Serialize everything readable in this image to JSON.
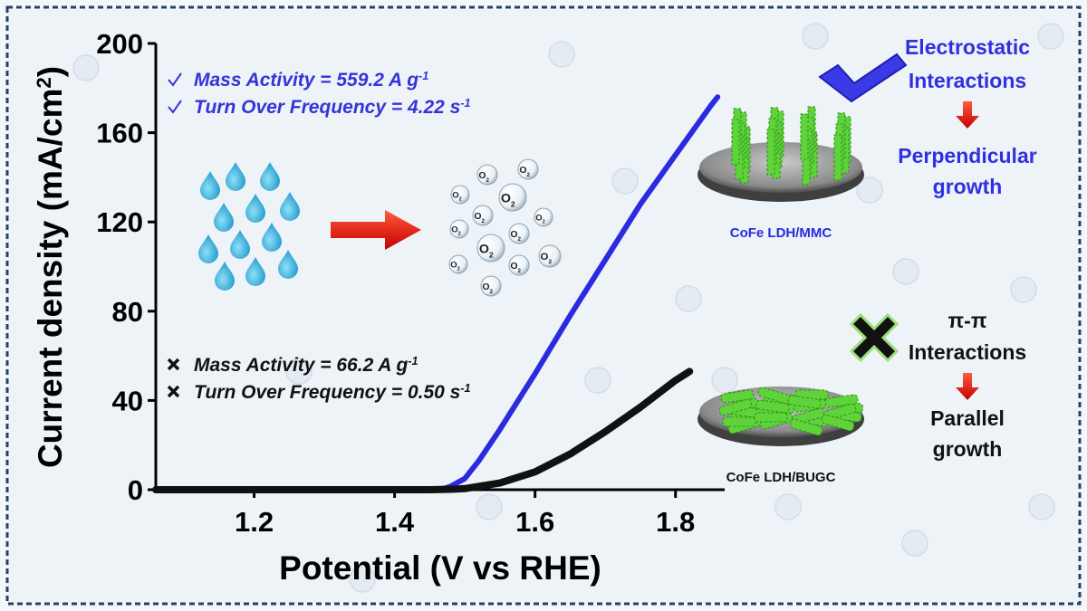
{
  "chart_data": {
    "type": "line",
    "xlabel": "Potential (V vs RHE)",
    "ylabel": {
      "text": "Current density (mA/cm",
      "sup": "2",
      "end": ")"
    },
    "xlim": [
      1.06,
      1.87
    ],
    "ylim": [
      0,
      200
    ],
    "xticks": [
      1.2,
      1.4,
      1.6,
      1.8
    ],
    "yticks": [
      0,
      40,
      80,
      120,
      160,
      200
    ],
    "series": [
      {
        "name": "CoFe LDH/MMC",
        "color": "#2a2ae0",
        "x": [
          1.06,
          1.2,
          1.3,
          1.4,
          1.45,
          1.47,
          1.48,
          1.5,
          1.52,
          1.55,
          1.6,
          1.65,
          1.7,
          1.75,
          1.8,
          1.85,
          1.86
        ],
        "values": [
          0,
          0,
          0,
          0,
          0,
          0.5,
          1.5,
          5,
          13,
          27,
          52,
          78,
          103,
          128,
          150,
          172,
          176
        ]
      },
      {
        "name": "CoFe LDH/BUGC",
        "color": "#111111",
        "x": [
          1.06,
          1.2,
          1.3,
          1.4,
          1.45,
          1.48,
          1.5,
          1.55,
          1.6,
          1.65,
          1.7,
          1.75,
          1.8,
          1.82
        ],
        "values": [
          0,
          0,
          0,
          0,
          0,
          0.2,
          0.5,
          3,
          8,
          16,
          26,
          37,
          49,
          53
        ]
      }
    ],
    "annotations": [
      {
        "text": "Mass Activity = 559.2 A g",
        "sup": "-1"
      },
      {
        "text": "Turn Over Frequency = 4.22 s",
        "sup": "-1"
      },
      {
        "text": "Mass Activity = 66.2 A g",
        "sup": "-1"
      },
      {
        "text": "Turn Over Frequency = 0.50 s",
        "sup": "-1"
      }
    ],
    "bubble_label": {
      "text": "O",
      "sub": "2"
    },
    "mmc_lines": [
      "Electrostatic",
      "Interactions",
      "Perpendicular",
      "growth"
    ],
    "bugc_lines": [
      "π-π",
      "Interactions",
      "Parallel",
      "growth"
    ]
  }
}
